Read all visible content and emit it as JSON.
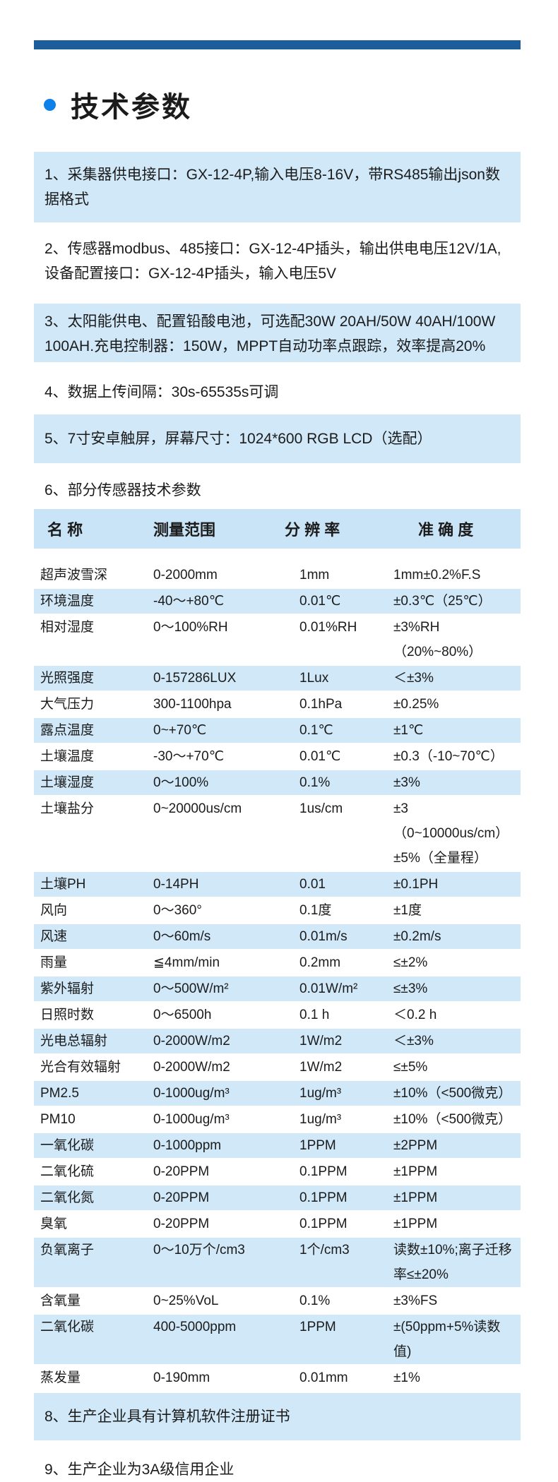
{
  "theme": {
    "bar": "#1d5d9b",
    "bullet": "#0d80ea",
    "block": "#d0e8f8",
    "header": "#c9e4f7",
    "stripe": "#d0e8f8",
    "text": "#1b1b1b"
  },
  "page": {
    "title": "技术参数"
  },
  "items": [
    {
      "no": "1",
      "text": "1、采集器供电接口：GX-12-4P,输入电压8-16V，带RS485输出json数据格式"
    },
    {
      "no": "2",
      "text": "2、传感器modbus、485接口：GX-12-4P插头，输出供电电压12V/1A,设备配置接口：GX-12-4P插头，输入电压5V"
    },
    {
      "no": "3",
      "text": "3、太阳能供电、配置铅酸电池，可选配30W 20AH/50W 40AH/100W 100AH.充电控制器：150W，MPPT自动功率点跟踪，效率提高20%"
    },
    {
      "no": "4",
      "text": "4、数据上传间隔：30s-65535s可调"
    },
    {
      "no": "5",
      "text": "5、7寸安卓触屏，屏幕尺寸：1024*600 RGB LCD（选配）"
    },
    {
      "no": "6",
      "text": "6、部分传感器技术参数"
    },
    {
      "no": "8",
      "text": "8、生产企业具有计算机软件注册证书"
    },
    {
      "no": "9",
      "text": "9、生产企业为3A级信用企业"
    }
  ],
  "table": {
    "headers": {
      "name": "名 称",
      "range": "测量范围",
      "resolution": "分 辨 率",
      "accuracy": "准 确 度"
    },
    "rows": [
      {
        "name": "超声波雪深",
        "range": "0-2000mm",
        "resolution": "1mm",
        "accuracy": "1mm±0.2%F.S"
      },
      {
        "name": "环境温度",
        "range": "-40～+80℃",
        "resolution": "0.01℃",
        "accuracy": "±0.3℃（25℃）"
      },
      {
        "name": "相对湿度",
        "range": "0～100%RH",
        "resolution": "0.01%RH",
        "accuracy": "±3%RH（20%~80%）"
      },
      {
        "name": "光照强度",
        "range": "0-157286LUX",
        "resolution": "1Lux",
        "accuracy": "＜±3%"
      },
      {
        "name": "大气压力",
        "range": "300-1100hpa",
        "resolution": "0.1hPa",
        "accuracy": "±0.25%"
      },
      {
        "name": "露点温度",
        "range": "0~+70℃",
        "resolution": "0.1℃",
        "accuracy": "±1℃"
      },
      {
        "name": "土壤温度",
        "range": "-30～+70℃",
        "resolution": "0.01℃",
        "accuracy": "±0.3（-10~70℃）"
      },
      {
        "name": "土壤湿度",
        "range": "0～100%",
        "resolution": "0.1%",
        "accuracy": "±3%"
      },
      {
        "name": "土壤盐分",
        "range": "0~20000us/cm",
        "resolution": "1us/cm",
        "accuracy": "±3（0~10000us/cm） ±5%（全量程）"
      },
      {
        "name": "土壤PH",
        "range": "0-14PH",
        "resolution": "0.01",
        "accuracy": "±0.1PH"
      },
      {
        "name": "风向",
        "range": "0～360°",
        "resolution": "0.1度",
        "accuracy": "±1度"
      },
      {
        "name": "风速",
        "range": "0～60m/s",
        "resolution": "0.01m/s",
        "accuracy": "±0.2m/s"
      },
      {
        "name": "雨量",
        "range": "≦4mm/min",
        "resolution": "0.2mm",
        "accuracy": "≤±2%"
      },
      {
        "name": "紫外辐射",
        "range": "0～500W/m²",
        "resolution": "0.01W/m²",
        "accuracy": "≤±3%"
      },
      {
        "name": "日照时数",
        "range": "0～6500h",
        "resolution": "0.1 h",
        "accuracy": "＜0.2 h"
      },
      {
        "name": "光电总辐射",
        "range": "0-2000W/m2",
        "resolution": "1W/m2",
        "accuracy": "＜±3%"
      },
      {
        "name": "光合有效辐射",
        "range": "0-2000W/m2",
        "resolution": "1W/m2",
        "accuracy": "≤±5%"
      },
      {
        "name": "PM2.5",
        "range": "0-1000ug/m³",
        "resolution": "1ug/m³",
        "accuracy": "±10%（<500微克）"
      },
      {
        "name": "PM10",
        "range": "0-1000ug/m³",
        "resolution": "1ug/m³",
        "accuracy": "±10%（<500微克）"
      },
      {
        "name": "一氧化碳",
        "range": "0-1000ppm",
        "resolution": "1PPM",
        "accuracy": "±2PPM"
      },
      {
        "name": "二氧化硫",
        "range": "0-20PPM",
        "resolution": "0.1PPM",
        "accuracy": "±1PPM"
      },
      {
        "name": "二氧化氮",
        "range": "0-20PPM",
        "resolution": "0.1PPM",
        "accuracy": "±1PPM"
      },
      {
        "name": "臭氧",
        "range": "0-20PPM",
        "resolution": "0.1PPM",
        "accuracy": "±1PPM"
      },
      {
        "name": "负氧离子",
        "range": "0～10万个/cm3",
        "resolution": "1个/cm3",
        "accuracy": "读数±10%;离子迁移率≤±20%"
      },
      {
        "name": "含氧量",
        "range": "0~25%VoL",
        "resolution": "0.1%",
        "accuracy": "±3%FS"
      },
      {
        "name": "二氧化碳",
        "range": "400-5000ppm",
        "resolution": "1PPM",
        "accuracy": "±(50ppm+5%读数值)"
      },
      {
        "name": "蒸发量",
        "range": "0-190mm",
        "resolution": "0.01mm",
        "accuracy": "±1%"
      }
    ]
  }
}
